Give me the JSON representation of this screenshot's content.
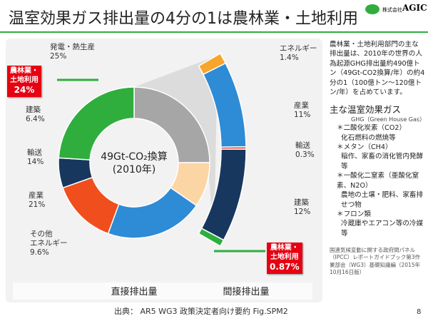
{
  "title": "温室効果ガス排出量の4分の1は農林業・土地利用",
  "logo": {
    "small": "株式会社",
    "name": "AGIC"
  },
  "chart_data": [
    {
      "type": "donut",
      "label": "直接排出量",
      "center_label": [
        "49Gt-CO₂換算",
        "(2010年)"
      ],
      "categories": [
        "発電・熱生産",
        "その他\nエネルギー",
        "産業",
        "輸送",
        "建築",
        "農林業・\n土地利用"
      ],
      "values": [
        25,
        9.6,
        21,
        14,
        6.4,
        24
      ],
      "value_labels": [
        "25%",
        "9.6%",
        "21%",
        "14%",
        "6.4%",
        "24%"
      ],
      "colors": [
        "#a6a6a6",
        "#fcd5a5",
        "#2e8bd6",
        "#f04e1c",
        "#17375e",
        "#2fae3e"
      ]
    },
    {
      "type": "arc",
      "label": "間接排出量",
      "categories": [
        "エネルギー",
        "産業",
        "輸送",
        "建築",
        "農林業・\n土地利用"
      ],
      "values": [
        1.4,
        11,
        0.3,
        12,
        0.87
      ],
      "value_labels": [
        "1.4%",
        "11%",
        "0.3%",
        "12%",
        "0.87%"
      ],
      "colors": [
        "#f7a52b",
        "#2e8bd6",
        "#e03c1c",
        "#17375e",
        "#2fae3e"
      ]
    }
  ],
  "side": {
    "description": "農林業・土地利用部門の主な排出量は、2010年の世界の人為起源GHG排出量約490億トン（49Gt-CO2換算/年）の約4分の1（100億トン～120億トン/年）を占めています。",
    "heading": "主な温室効果ガス",
    "subheading": "GHG（Green House Gas）",
    "items": [
      {
        "name": "＊二酸化炭素（CO2）",
        "detail": "化石燃料の燃焼等"
      },
      {
        "name": "＊メタン（CH4）",
        "detail": "稲作、家畜の消化管内発酵等"
      },
      {
        "name": "＊一酸化二窒素（亜酸化窒素、N2O）",
        "detail": "農地の土壌・肥料、家畜排せつ物"
      },
      {
        "name": "＊フロン類",
        "detail": "冷蔵庫やエアコン等の冷媒等"
      }
    ],
    "citation": "国連気候変動に関する政府間パネル（IPCC）レポートガイドブック第3作業部会（WG3）基礎知識編（2015年10月16日版）"
  },
  "source": "出典： AR5 WG3 政策決定者向け要約 Fig.SPM2",
  "page": "8"
}
